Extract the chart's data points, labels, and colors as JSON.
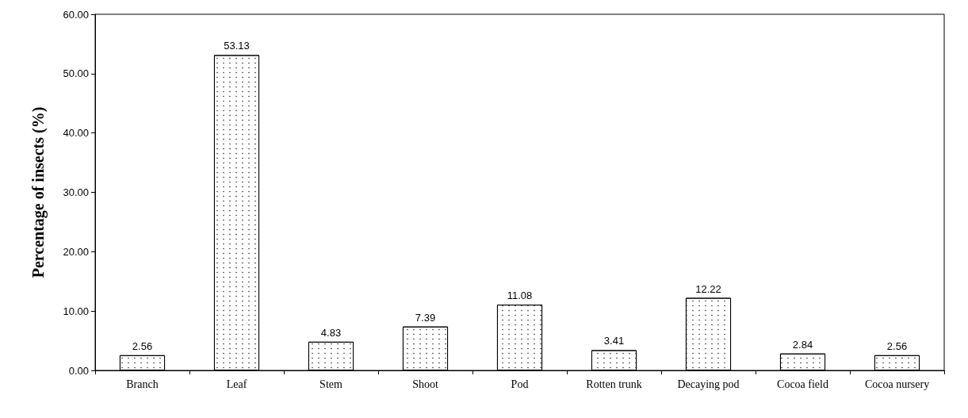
{
  "chart_data": {
    "type": "bar",
    "ylabel": "Percentage of insects (%)",
    "categories": [
      "Branch",
      "Leaf",
      "Stem",
      "Shoot",
      "Pod",
      "Rotten trunk",
      "Decaying pod",
      "Cocoa field",
      "Cocoa nursery"
    ],
    "values": [
      2.56,
      53.13,
      4.83,
      7.39,
      11.08,
      3.41,
      12.22,
      2.84,
      2.56
    ],
    "color": "#ffffff",
    "ylim": [
      0,
      60
    ],
    "yticks": [
      {
        "value": 0,
        "label": "0.00"
      },
      {
        "value": 10,
        "label": "10.00"
      },
      {
        "value": 20,
        "label": "20.00"
      },
      {
        "value": 30,
        "label": "30.00"
      },
      {
        "value": 40,
        "label": "40.00"
      },
      {
        "value": 50,
        "label": "50.00"
      },
      {
        "value": 60,
        "label": "60.00"
      }
    ],
    "data_labels": true,
    "grid": false
  }
}
